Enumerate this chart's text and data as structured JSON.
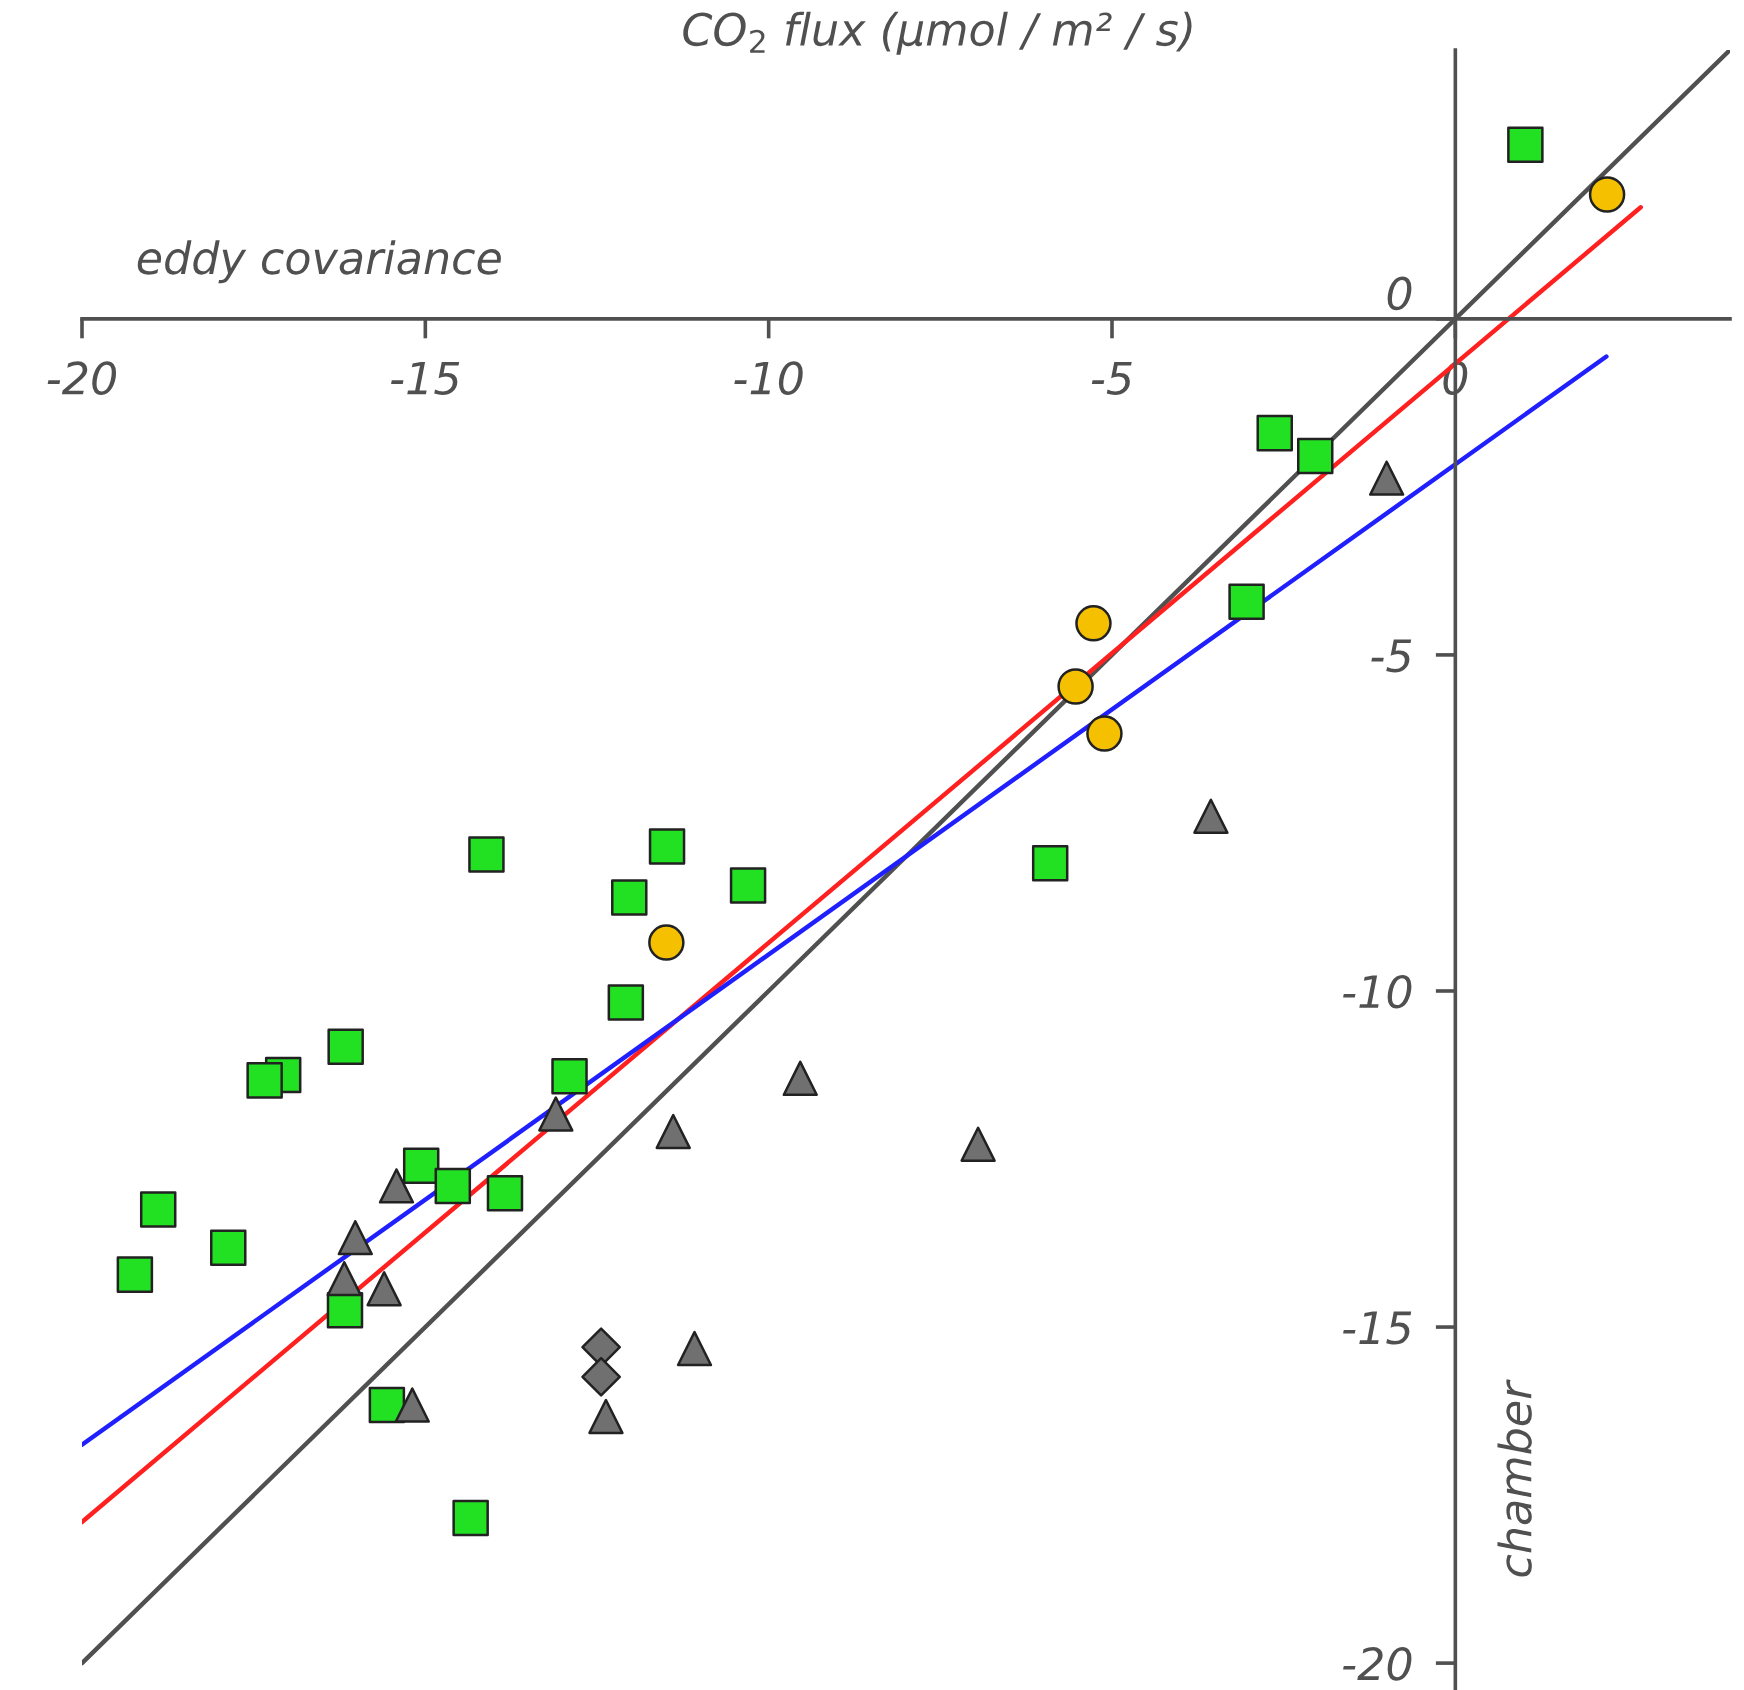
{
  "chart_data": {
    "type": "scatter",
    "title": "CO$_{2}$ flux (μmol / m² / s)",
    "xlabel": "eddy covariance",
    "ylabel": "chamber",
    "xlim": [
      -20,
      4
    ],
    "ylim": [
      -20.4,
      4
    ],
    "xticks": [
      -20,
      -15,
      -10,
      -5,
      0
    ],
    "yticks": [
      -20,
      -15,
      -10,
      -5,
      0
    ],
    "grid": false,
    "legend": false,
    "series": [
      {
        "marker": "square",
        "color": "#22e022",
        "x": [
          1.02,
          -2.63,
          -2.04,
          -3.04,
          -5.9,
          -10.3,
          -11.48,
          -12.03,
          -12.08,
          -14.11,
          -12.9,
          -16.16,
          -17.07,
          -17.34,
          -15.06,
          -14.6,
          -13.84,
          -18.89,
          -17.87,
          -19.23,
          -16.17,
          -15.56,
          -14.34
        ],
        "values": [
          2.59,
          -1.7,
          -2.04,
          -4.21,
          -8.1,
          -8.43,
          -7.85,
          -8.61,
          -10.17,
          -7.97,
          -11.27,
          -10.83,
          -11.25,
          -11.33,
          -12.6,
          -12.9,
          -13.01,
          -13.25,
          -13.82,
          -14.22,
          -14.75,
          -16.16,
          -17.84
        ]
      },
      {
        "marker": "triangle",
        "color": "#707070",
        "x": [
          -1.0,
          -3.56,
          -9.54,
          -6.95,
          -11.39,
          -13.1,
          -15.42,
          -16.02,
          -16.18,
          -15.6,
          -15.19,
          -11.08,
          -12.37
        ],
        "values": [
          -2.37,
          -7.4,
          -11.3,
          -12.28,
          -12.09,
          -11.83,
          -12.9,
          -13.67,
          -14.28,
          -14.43,
          -16.16,
          -15.32,
          -16.33
        ]
      },
      {
        "marker": "diamond",
        "color": "#707070",
        "x": [
          -12.44,
          -12.44
        ],
        "values": [
          -15.3,
          -15.74
        ]
      },
      {
        "marker": "circle",
        "color": "#f5c000",
        "x": [
          2.21,
          -5.27,
          -5.53,
          -5.11,
          -11.49
        ],
        "values": [
          1.85,
          -4.53,
          -5.47,
          -6.17,
          -9.28
        ]
      },
      {
        "type": "line",
        "marker": "none",
        "line_style": "solid",
        "color": "#505050",
        "x": [
          -20,
          4
        ],
        "values": [
          -20,
          4
        ]
      },
      {
        "type": "line",
        "marker": "none",
        "line_style": "solid",
        "color": "#ff2020",
        "x": [
          -20,
          2.7
        ],
        "values": [
          -17.9,
          1.66
        ]
      },
      {
        "type": "line",
        "marker": "none",
        "line_style": "solid",
        "color": "#2020ff",
        "x": [
          -20,
          2.2
        ],
        "values": [
          -16.75,
          -0.56
        ]
      }
    ]
  }
}
